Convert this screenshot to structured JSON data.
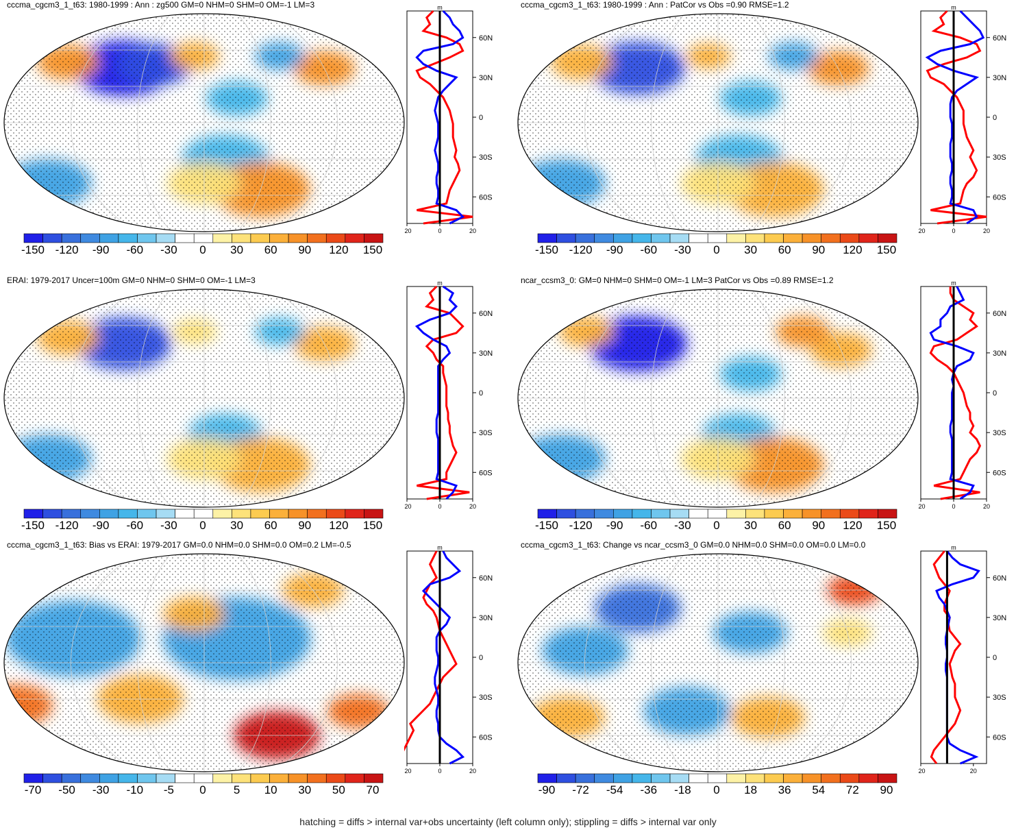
{
  "footnote": "hatching = diffs > internal var+obs uncertainty (left column only); stippling = diffs > internal var only",
  "colors": {
    "negative": [
      "#2020e8",
      "#2e4fe0",
      "#3870dc",
      "#3f8ae0",
      "#3fa2e4",
      "#45b6ea",
      "#6fc6ee",
      "#a6dcf4"
    ],
    "positive": [
      "#fdf2a6",
      "#fde27a",
      "#fccb50",
      "#fbb03a",
      "#f79228",
      "#f2701e",
      "#eb4a18",
      "#e0241a",
      "#c81414"
    ],
    "zonal_model": "#0000ff",
    "zonal_obs": "#ff0000"
  },
  "chart_data": [
    {
      "type": "map",
      "title": "cccma_cgcm3_1_t63: 1980-1999 : Ann : zg500 GM=0 NHM=0 SHM=0 OM=-1 LM=3",
      "colorbar_ticks": [
        "-150",
        "-120",
        "-90",
        "-60",
        "-30",
        "0",
        "30",
        "60",
        "90",
        "120",
        "150"
      ],
      "zonal": {
        "unit": "m",
        "xlim": [
          -20,
          20
        ],
        "xticks": [
          "-20",
          "0",
          "20"
        ],
        "lat_ticks": [
          "60N",
          "30N",
          "0",
          "30S",
          "60S"
        ],
        "lat_values": [
          60,
          30,
          0,
          -30,
          -60
        ],
        "lats": [
          80,
          75,
          70,
          65,
          60,
          55,
          50,
          45,
          40,
          35,
          30,
          25,
          20,
          15,
          10,
          5,
          0,
          -5,
          -10,
          -15,
          -20,
          -25,
          -30,
          -35,
          -40,
          -45,
          -50,
          -55,
          -60,
          -65,
          -70,
          -75,
          -80
        ],
        "model": [
          2,
          6,
          8,
          12,
          14,
          8,
          -10,
          -14,
          -10,
          -2,
          10,
          6,
          2,
          -1,
          -2,
          -3,
          -2,
          -1,
          -1,
          -1,
          -2,
          -3,
          -2,
          -1,
          -1,
          -2,
          -2,
          -1,
          -1,
          -2,
          10,
          14,
          6
        ],
        "obs": [
          -4,
          -8,
          -6,
          -10,
          4,
          12,
          14,
          6,
          -4,
          -14,
          -12,
          -6,
          -2,
          2,
          4,
          6,
          7,
          8,
          8,
          8,
          9,
          10,
          9,
          11,
          12,
          10,
          8,
          6,
          5,
          4,
          -14,
          20,
          -10
        ]
      },
      "blobs": [
        {
          "lon": 100,
          "lat": 45,
          "value": -150,
          "size": 40
        },
        {
          "lon": 130,
          "lat": 48,
          "value": -120,
          "size": 30
        },
        {
          "lon": 40,
          "lat": 50,
          "value": 90,
          "size": 25
        },
        {
          "lon": -60,
          "lat": 45,
          "value": 90,
          "size": 25
        },
        {
          "lon": -100,
          "lat": 55,
          "value": -60,
          "size": 20
        },
        {
          "lon": 170,
          "lat": 55,
          "value": 60,
          "size": 20
        },
        {
          "lon": -150,
          "lat": 20,
          "value": -30,
          "size": 25
        },
        {
          "lon": -160,
          "lat": -30,
          "value": -30,
          "size": 35
        },
        {
          "lon": 20,
          "lat": -50,
          "value": -60,
          "size": 35
        },
        {
          "lon": -120,
          "lat": -55,
          "value": 90,
          "size": 40
        },
        {
          "lon": 180,
          "lat": -50,
          "value": 30,
          "size": 30
        }
      ]
    },
    {
      "type": "map",
      "title": "cccma_cgcm3_1_t63: 1980-1999 : Ann : PatCor vs Obs =0.90 RMSE=1.2",
      "colorbar_ticks": [
        "-150",
        "-120",
        "-90",
        "-60",
        "-30",
        "0",
        "30",
        "60",
        "90",
        "120",
        "150"
      ],
      "zonal": {
        "unit": "m",
        "xlim": [
          -20,
          20
        ],
        "xticks": [
          "-20",
          "0",
          "20"
        ],
        "lat_ticks": [
          "60N",
          "30N",
          "0",
          "30S",
          "60S"
        ],
        "lat_values": [
          60,
          30,
          0,
          -30,
          -60
        ],
        "lats": [
          80,
          75,
          70,
          65,
          60,
          55,
          50,
          45,
          40,
          35,
          30,
          25,
          20,
          15,
          10,
          5,
          0,
          -5,
          -10,
          -15,
          -20,
          -25,
          -30,
          -35,
          -40,
          -45,
          -50,
          -55,
          -60,
          -65,
          -70,
          -75,
          -80
        ],
        "model": [
          4,
          8,
          12,
          16,
          18,
          10,
          -8,
          -16,
          -10,
          0,
          14,
          8,
          2,
          -1,
          -2,
          -2,
          -2,
          -1,
          -1,
          -1,
          -2,
          -2,
          -2,
          -1,
          -1,
          -2,
          -2,
          -1,
          -1,
          -2,
          12,
          14,
          8
        ],
        "obs": [
          -4,
          -8,
          -6,
          -12,
          4,
          14,
          16,
          8,
          -6,
          -16,
          -14,
          -6,
          -2,
          2,
          4,
          6,
          6,
          6,
          7,
          8,
          10,
          12,
          10,
          12,
          14,
          12,
          8,
          6,
          5,
          4,
          -14,
          20,
          -10
        ]
      },
      "blobs": [
        {
          "lon": 100,
          "lat": 45,
          "value": -120,
          "size": 38
        },
        {
          "lon": 40,
          "lat": 50,
          "value": 60,
          "size": 25
        },
        {
          "lon": -60,
          "lat": 45,
          "value": 90,
          "size": 25
        },
        {
          "lon": -100,
          "lat": 55,
          "value": -60,
          "size": 20
        },
        {
          "lon": 170,
          "lat": 55,
          "value": 60,
          "size": 18
        },
        {
          "lon": -150,
          "lat": 20,
          "value": -30,
          "size": 25
        },
        {
          "lon": -160,
          "lat": -30,
          "value": -30,
          "size": 35
        },
        {
          "lon": 20,
          "lat": -50,
          "value": -60,
          "size": 35
        },
        {
          "lon": -120,
          "lat": -55,
          "value": 60,
          "size": 40
        },
        {
          "lon": 180,
          "lat": -50,
          "value": 30,
          "size": 30
        }
      ]
    },
    {
      "type": "map",
      "title": "ERAI: 1979-2017 Uncer=100m GM=0 NHM=0 SHM=0 OM=-1 LM=3",
      "colorbar_ticks": [
        "-150",
        "-120",
        "-90",
        "-60",
        "-30",
        "0",
        "30",
        "60",
        "90",
        "120",
        "150"
      ],
      "zonal": {
        "unit": "m",
        "xlim": [
          -20,
          20
        ],
        "xticks": [
          "-20",
          "0",
          "20"
        ],
        "lat_ticks": [
          "60N",
          "30N",
          "0",
          "30S",
          "60S"
        ],
        "lat_values": [
          60,
          30,
          0,
          -30,
          -60
        ],
        "lats": [
          80,
          75,
          70,
          65,
          60,
          55,
          50,
          45,
          40,
          35,
          30,
          25,
          20,
          15,
          10,
          5,
          0,
          -5,
          -10,
          -15,
          -20,
          -25,
          -30,
          -35,
          -40,
          -45,
          -50,
          -55,
          -60,
          -65,
          -70,
          -75,
          -80
        ],
        "model": [
          2,
          8,
          6,
          10,
          6,
          -6,
          -14,
          -10,
          -4,
          4,
          6,
          2,
          -1,
          -1,
          -1,
          -1,
          -1,
          -1,
          -1,
          -1,
          -2,
          -2,
          -2,
          -1,
          -1,
          -1,
          -1,
          -1,
          -1,
          -2,
          10,
          8,
          4
        ],
        "obs": [
          -2,
          -6,
          -4,
          -8,
          6,
          10,
          14,
          10,
          -4,
          -8,
          -4,
          -2,
          2,
          2,
          3,
          4,
          4,
          4,
          4,
          5,
          5,
          6,
          6,
          7,
          8,
          10,
          8,
          6,
          4,
          4,
          -14,
          18,
          -8
        ]
      },
      "blobs": [
        {
          "lon": 100,
          "lat": 45,
          "value": -120,
          "size": 38
        },
        {
          "lon": 40,
          "lat": 50,
          "value": 60,
          "size": 25
        },
        {
          "lon": -60,
          "lat": 45,
          "value": 60,
          "size": 25
        },
        {
          "lon": -100,
          "lat": 55,
          "value": -30,
          "size": 20
        },
        {
          "lon": 170,
          "lat": 55,
          "value": 30,
          "size": 18
        },
        {
          "lon": -160,
          "lat": -30,
          "value": -30,
          "size": 30
        },
        {
          "lon": 20,
          "lat": -50,
          "value": -60,
          "size": 35
        },
        {
          "lon": -120,
          "lat": -55,
          "value": 60,
          "size": 40
        },
        {
          "lon": 180,
          "lat": -50,
          "value": 30,
          "size": 30
        }
      ]
    },
    {
      "type": "map",
      "title": "ncar_ccsm3_0: GM=0 NHM=0 SHM=0 OM=-1 LM=3 PatCor vs Obs =0.89 RMSE=1.2",
      "colorbar_ticks": [
        "-150",
        "-120",
        "-90",
        "-60",
        "-30",
        "0",
        "30",
        "60",
        "90",
        "120",
        "150"
      ],
      "zonal": {
        "unit": "m",
        "xlim": [
          -20,
          20
        ],
        "xticks": [
          "-20",
          "0",
          "20"
        ],
        "lat_ticks": [
          "60N",
          "30N",
          "0",
          "30S",
          "60S"
        ],
        "lat_values": [
          60,
          30,
          0,
          -30,
          -60
        ],
        "lats": [
          80,
          75,
          70,
          65,
          60,
          55,
          50,
          45,
          40,
          35,
          30,
          25,
          20,
          15,
          10,
          5,
          0,
          -5,
          -10,
          -15,
          -20,
          -25,
          -30,
          -35,
          -40,
          -45,
          -50,
          -55,
          -60,
          -65,
          -70,
          -75,
          -80
        ],
        "model": [
          2,
          4,
          6,
          -2,
          -4,
          -8,
          -8,
          -14,
          -12,
          2,
          12,
          10,
          2,
          0,
          -1,
          0,
          -1,
          -1,
          -1,
          -1,
          -1,
          -2,
          -2,
          -1,
          -1,
          -1,
          -1,
          -1,
          -1,
          -2,
          12,
          10,
          4
        ],
        "obs": [
          -2,
          -2,
          0,
          6,
          12,
          10,
          14,
          8,
          2,
          -12,
          -14,
          -10,
          -4,
          0,
          2,
          4,
          6,
          7,
          8,
          10,
          10,
          12,
          10,
          14,
          16,
          14,
          10,
          8,
          6,
          4,
          -12,
          16,
          -8
        ]
      },
      "blobs": [
        {
          "lon": 100,
          "lat": 45,
          "value": -150,
          "size": 40
        },
        {
          "lon": 40,
          "lat": 55,
          "value": 60,
          "size": 22
        },
        {
          "lon": -60,
          "lat": 40,
          "value": 60,
          "size": 25
        },
        {
          "lon": -90,
          "lat": 55,
          "value": 90,
          "size": 22
        },
        {
          "lon": -150,
          "lat": 20,
          "value": -30,
          "size": 25
        },
        {
          "lon": -160,
          "lat": -30,
          "value": -30,
          "size": 30
        },
        {
          "lon": 20,
          "lat": -50,
          "value": -60,
          "size": 35
        },
        {
          "lon": -120,
          "lat": -55,
          "value": 90,
          "size": 40
        },
        {
          "lon": 180,
          "lat": -50,
          "value": 30,
          "size": 30
        }
      ]
    },
    {
      "type": "map",
      "title": "cccma_cgcm3_1_t63: Bias vs ERAI: 1979-2017 GM=0.0 NHM=0.0 SHM=0.0 OM=0.2 LM=-0.5",
      "colorbar_ticks": [
        "-70",
        "-50",
        "-30",
        "-10",
        "-5",
        "0",
        "5",
        "10",
        "30",
        "50",
        "70"
      ],
      "zonal": {
        "unit": "m",
        "xlim": [
          -20,
          20
        ],
        "xticks": [
          "-20",
          "0",
          "20"
        ],
        "lat_ticks": [
          "60N",
          "30N",
          "0",
          "30S",
          "60S"
        ],
        "lat_values": [
          60,
          30,
          0,
          -30,
          -60
        ],
        "lats": [
          80,
          75,
          70,
          65,
          60,
          55,
          50,
          45,
          40,
          35,
          30,
          25,
          20,
          15,
          10,
          5,
          0,
          -5,
          -10,
          -15,
          -20,
          -25,
          -30,
          -35,
          -40,
          -45,
          -50,
          -55,
          -60,
          -65,
          -70,
          -75,
          -80
        ],
        "model": [
          2,
          4,
          8,
          12,
          6,
          -6,
          -10,
          -6,
          -2,
          2,
          6,
          4,
          0,
          -2,
          -2,
          -2,
          -1,
          -1,
          -2,
          -3,
          -3,
          -2,
          -1,
          -1,
          -2,
          -2,
          -1,
          -1,
          0,
          4,
          10,
          14,
          6
        ],
        "obs": [
          -2,
          -4,
          -6,
          -4,
          -2,
          -6,
          -8,
          -10,
          -8,
          -4,
          -2,
          -1,
          0,
          2,
          4,
          6,
          8,
          10,
          6,
          2,
          0,
          -2,
          -4,
          -6,
          -10,
          -14,
          -18,
          -16,
          -18,
          -20,
          -22,
          -24,
          -26
        ]
      },
      "blobs": [
        {
          "lon": 60,
          "lat": 20,
          "value": -30,
          "size": 55
        },
        {
          "lon": -150,
          "lat": 20,
          "value": -30,
          "size": 60
        },
        {
          "lon": 0,
          "lat": -35,
          "value": 50,
          "size": 30
        },
        {
          "lon": 120,
          "lat": -30,
          "value": 30,
          "size": 35
        },
        {
          "lon": -100,
          "lat": -60,
          "value": 70,
          "size": 35
        },
        {
          "lon": -30,
          "lat": -40,
          "value": 50,
          "size": 25
        },
        {
          "lon": 170,
          "lat": 40,
          "value": 30,
          "size": 25
        },
        {
          "lon": -60,
          "lat": 60,
          "value": 30,
          "size": 25
        }
      ]
    },
    {
      "type": "map",
      "title": "cccma_cgcm3_1_t63: Change vs ncar_ccsm3_0 GM=0.0 NHM=0.0 SHM=0.0 OM=0.0 LM=0.0",
      "colorbar_ticks": [
        "-90",
        "-72",
        "-54",
        "-36",
        "-18",
        "0",
        "18",
        "36",
        "54",
        "72",
        "90"
      ],
      "zonal": {
        "unit": "m",
        "xlim": [
          -20,
          30
        ],
        "xticks": [
          "-20",
          "20"
        ],
        "lat_ticks": [
          "60N",
          "30N",
          "0",
          "30S",
          "60S"
        ],
        "lat_values": [
          60,
          30,
          0,
          -30,
          -60
        ],
        "lats": [
          80,
          75,
          70,
          65,
          60,
          55,
          50,
          45,
          40,
          35,
          30,
          25,
          20,
          15,
          10,
          5,
          0,
          -5,
          -10,
          -15,
          -20,
          -25,
          -30,
          -35,
          -40,
          -45,
          -50,
          -55,
          -60,
          -65,
          -70,
          -75,
          -80
        ],
        "model": [
          0,
          4,
          10,
          24,
          20,
          4,
          -8,
          -6,
          -2,
          0,
          2,
          1,
          0,
          -1,
          -1,
          0,
          0,
          -1,
          -1,
          0,
          0,
          0,
          0,
          0,
          0,
          0,
          0,
          0,
          0,
          2,
          10,
          22,
          10
        ],
        "obs": [
          -2,
          -6,
          -10,
          -8,
          -6,
          -2,
          2,
          0,
          -2,
          -2,
          2,
          1,
          2,
          6,
          10,
          6,
          4,
          2,
          3,
          4,
          6,
          6,
          6,
          8,
          10,
          8,
          6,
          2,
          -2,
          -6,
          -10,
          -12,
          -8
        ]
      },
      "blobs": [
        {
          "lon": 100,
          "lat": 45,
          "value": -54,
          "size": 35
        },
        {
          "lon": -150,
          "lat": 25,
          "value": -36,
          "size": 30
        },
        {
          "lon": 60,
          "lat": 10,
          "value": -36,
          "size": 35
        },
        {
          "lon": -30,
          "lat": 60,
          "value": 72,
          "size": 22
        },
        {
          "lon": 30,
          "lat": -45,
          "value": 36,
          "size": 30
        },
        {
          "lon": -130,
          "lat": -45,
          "value": 36,
          "size": 30
        },
        {
          "lon": 150,
          "lat": -40,
          "value": -36,
          "size": 35
        },
        {
          "lon": -60,
          "lat": 25,
          "value": 18,
          "size": 20
        }
      ]
    }
  ]
}
